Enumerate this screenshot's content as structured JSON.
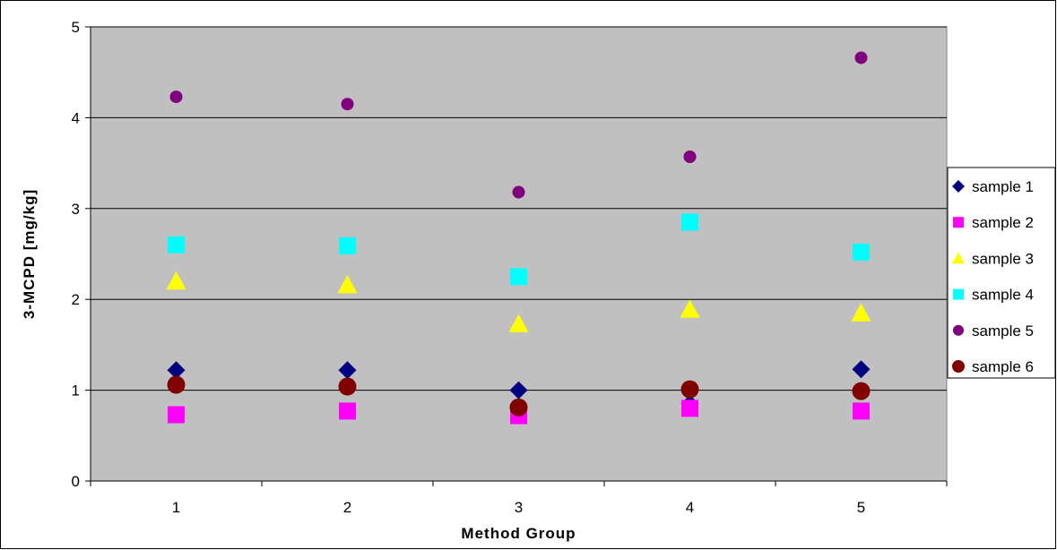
{
  "chart_data": {
    "type": "scatter",
    "xlabel": "Method Group",
    "ylabel": "3-MCPD [mg/kg]",
    "categories": [
      "1",
      "2",
      "3",
      "4",
      "5"
    ],
    "xlim": [
      0.5,
      5.5
    ],
    "ylim": [
      0,
      5
    ],
    "yticks": [
      "0",
      "1",
      "2",
      "3",
      "4",
      "5"
    ],
    "grid": true,
    "plot_background": "#c0c0c0",
    "legend_position": "right",
    "series": [
      {
        "name": "sample 1",
        "marker": "diamond",
        "color": "#000080",
        "values": [
          1.22,
          1.22,
          1.0,
          0.85,
          1.23
        ]
      },
      {
        "name": "sample 2",
        "marker": "square",
        "color": "#ff00ff",
        "values": [
          0.73,
          0.77,
          0.72,
          0.8,
          0.77
        ]
      },
      {
        "name": "sample 3",
        "marker": "triangle",
        "color": "#ffff00",
        "values": [
          2.2,
          2.16,
          1.73,
          1.89,
          1.85
        ]
      },
      {
        "name": "sample 4",
        "marker": "square",
        "color": "#00ffff",
        "values": [
          2.6,
          2.59,
          2.25,
          2.85,
          2.52
        ]
      },
      {
        "name": "sample 5",
        "marker": "circle-small",
        "color": "#800080",
        "values": [
          4.23,
          4.15,
          3.18,
          3.57,
          4.66
        ]
      },
      {
        "name": "sample 6",
        "marker": "circle",
        "color": "#800000",
        "values": [
          1.06,
          1.04,
          0.81,
          1.01,
          0.99
        ]
      }
    ]
  }
}
